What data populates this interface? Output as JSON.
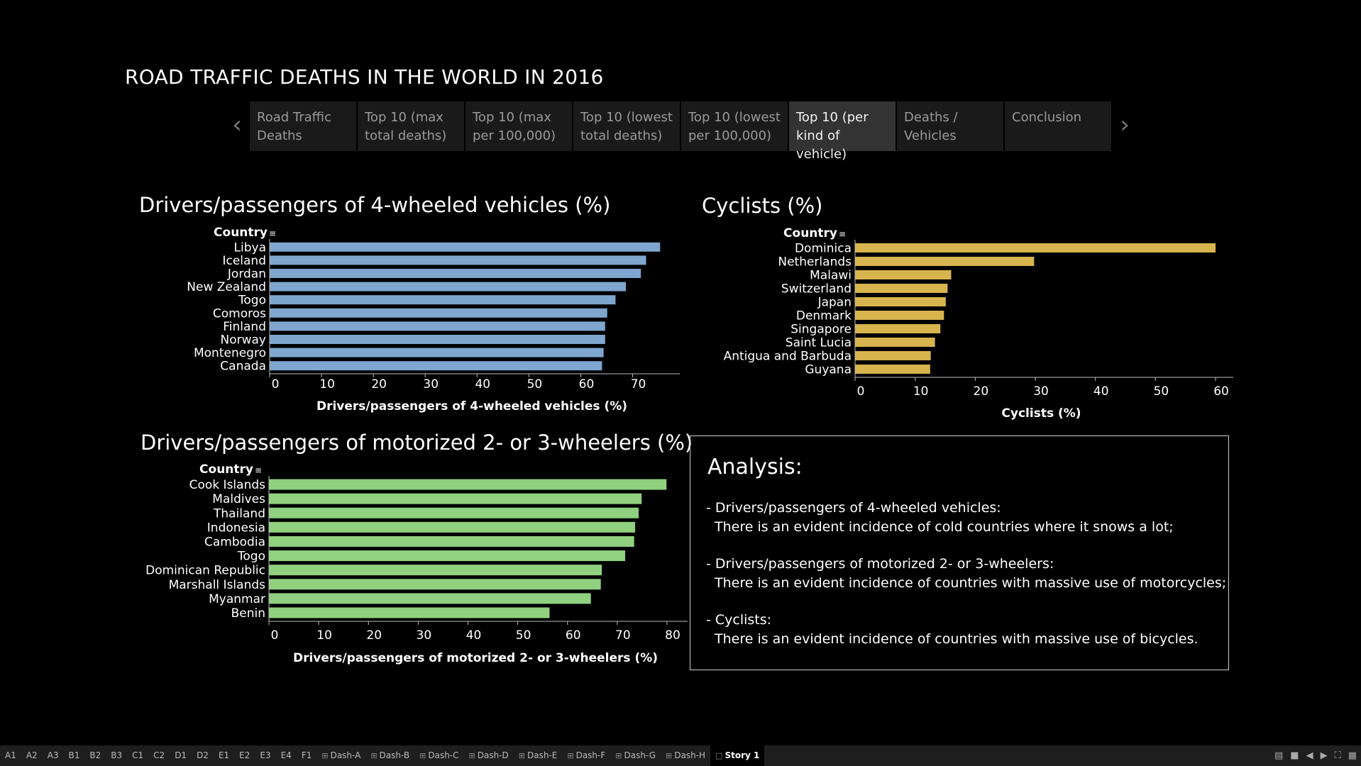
{
  "story": {
    "title": "ROAD TRAFFIC DEATHS IN THE WORLD IN 2016",
    "points": [
      "Road Traffic Deaths",
      "Top 10 (max total deaths)",
      "Top 10 (max per 100,000)",
      "Top 10 (lowest total deaths)",
      "Top 10 (lowest per 100,000)",
      "Top 10 (per kind of vehicle)",
      "Deaths / Vehicles",
      "Conclusion"
    ],
    "active_index": 5
  },
  "charts": {
    "four_wheeled": {
      "title": "Drivers/passengers of 4-wheeled vehicles (%)"
    },
    "cyclists": {
      "title": "Cyclists (%)"
    },
    "two_three": {
      "title": "Drivers/passengers of motorized 2- or 3-wheelers (%)"
    }
  },
  "chart_data": [
    {
      "type": "bar",
      "orientation": "horizontal",
      "title": "Drivers/passengers of 4-wheeled vehicles (%)",
      "category_header": "Country",
      "xlabel": "Drivers/passengers of 4-wheeled vehicles (%)",
      "xlim": [
        0,
        78
      ],
      "xticks": [
        0,
        10,
        20,
        30,
        40,
        50,
        60,
        70
      ],
      "categories": [
        "Libya",
        "Iceland",
        "Jordan",
        "New Zealand",
        "Togo",
        "Comoros",
        "Finland",
        "Norway",
        "Montenegro",
        "Canada"
      ],
      "values": [
        75.3,
        72.6,
        71.6,
        68.7,
        66.7,
        65.1,
        64.7,
        64.7,
        64.4,
        64.1
      ],
      "color": "#7ea6cf"
    },
    {
      "type": "bar",
      "orientation": "horizontal",
      "title": "Cyclists (%)",
      "category_header": "Country",
      "xlabel": "Cyclists (%)",
      "xlim": [
        0,
        62
      ],
      "xticks": [
        0,
        10,
        20,
        30,
        40,
        50,
        60
      ],
      "categories": [
        "Dominica",
        "Netherlands",
        "Malawi",
        "Switzerland",
        "Japan",
        "Denmark",
        "Singapore",
        "Saint Lucia",
        "Antigua and Barbuda",
        "Guyana"
      ],
      "values": [
        60.0,
        29.8,
        16.0,
        15.4,
        15.1,
        14.8,
        14.2,
        13.3,
        12.6,
        12.5
      ],
      "color": "#d7b44e"
    },
    {
      "type": "bar",
      "orientation": "horizontal",
      "title": "Drivers/passengers of motorized 2- or 3-wheelers (%)",
      "category_header": "Country",
      "xlabel": "Drivers/passengers of motorized 2- or 3-wheelers (%)",
      "xlim": [
        0,
        83
      ],
      "xticks": [
        0,
        10,
        20,
        30,
        40,
        50,
        60,
        70,
        80
      ],
      "categories": [
        "Cook Islands",
        "Maldives",
        "Thailand",
        "Indonesia",
        "Cambodia",
        "Togo",
        "Dominican Republic",
        "Marshall Islands",
        "Myanmar",
        "Benin"
      ],
      "values": [
        79.9,
        74.9,
        74.3,
        73.6,
        73.4,
        71.6,
        66.9,
        66.7,
        64.7,
        56.4
      ],
      "color": "#8fd17e"
    }
  ],
  "analysis": {
    "title": "Analysis:",
    "items": [
      {
        "heading": "-  Drivers/passengers of 4-wheeled vehicles:",
        "text": "There is an evident incidence of cold countries where it snows a lot;"
      },
      {
        "heading": "-  Drivers/passengers of motorized 2- or 3-wheelers:",
        "text": " There is an evident incidence of countries with massive use of motorcycles;"
      },
      {
        "heading": " -  Cyclists:",
        "text": " There is an evident incidence of countries with massive use of bicycles."
      }
    ]
  },
  "tabs": [
    {
      "label": "A1",
      "icon": ""
    },
    {
      "label": "A2",
      "icon": ""
    },
    {
      "label": "A3",
      "icon": ""
    },
    {
      "label": "B1",
      "icon": ""
    },
    {
      "label": "B2",
      "icon": ""
    },
    {
      "label": "B3",
      "icon": ""
    },
    {
      "label": "C1",
      "icon": ""
    },
    {
      "label": "C2",
      "icon": ""
    },
    {
      "label": "D1",
      "icon": ""
    },
    {
      "label": "D2",
      "icon": ""
    },
    {
      "label": "E1",
      "icon": ""
    },
    {
      "label": "E2",
      "icon": ""
    },
    {
      "label": "E3",
      "icon": ""
    },
    {
      "label": "E4",
      "icon": ""
    },
    {
      "label": "F1",
      "icon": ""
    },
    {
      "label": "Dash-A",
      "icon": "dashboard-icon"
    },
    {
      "label": "Dash-B",
      "icon": "dashboard-icon"
    },
    {
      "label": "Dash-C",
      "icon": "dashboard-icon"
    },
    {
      "label": "Dash-D",
      "icon": "dashboard-icon"
    },
    {
      "label": "Dash-E",
      "icon": "dashboard-icon"
    },
    {
      "label": "Dash-F",
      "icon": "dashboard-icon"
    },
    {
      "label": "Dash-G",
      "icon": "dashboard-icon"
    },
    {
      "label": "Dash-H",
      "icon": "dashboard-icon"
    },
    {
      "label": "Story 1",
      "icon": "story-icon",
      "active": true
    }
  ],
  "colors": {
    "background": "#000000",
    "bar_blue": "#7ea6cf",
    "bar_yellow": "#d7b44e",
    "bar_green": "#8fd17e"
  }
}
